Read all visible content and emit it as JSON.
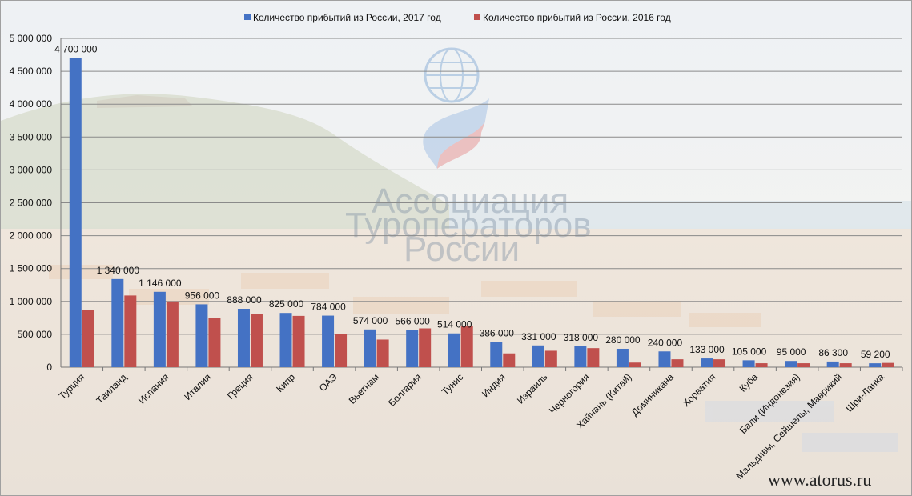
{
  "chart_data": {
    "type": "bar",
    "title": "",
    "xlabel": "",
    "ylabel": "",
    "ylim": [
      0,
      5000000
    ],
    "ytick_step": 500000,
    "grid": true,
    "legend_position": "top",
    "categories": [
      "Турция",
      "Таиланд",
      "Испания",
      "Италия",
      "Греция",
      "Кипр",
      "ОАЭ",
      "Вьетнам",
      "Болгария",
      "Тунис",
      "Индия",
      "Израиль",
      "Черногория",
      "Хайнань (Китай)",
      "Доминикана",
      "Хорватия",
      "Куба",
      "Бали (Индонезия)",
      "Мальдивы, Сейшелы, Маврикий",
      "Шри-Ланка"
    ],
    "series": [
      {
        "name": "Количество прибытий из России, 2017 год",
        "color": "#4472c4",
        "values": [
          4700000,
          1340000,
          1146000,
          956000,
          888000,
          825000,
          784000,
          574000,
          566000,
          514000,
          386000,
          331000,
          318000,
          280000,
          240000,
          133000,
          105000,
          95000,
          86300,
          59200
        ]
      },
      {
        "name": "Количество прибытий из России, 2016 год",
        "color": "#c0504d",
        "values": [
          870000,
          1090000,
          1000000,
          750000,
          810000,
          780000,
          510000,
          420000,
          590000,
          620000,
          210000,
          250000,
          290000,
          70000,
          120000,
          120000,
          60000,
          60000,
          60000,
          65000
        ]
      }
    ],
    "data_labels": [
      "4 700 000",
      "1 340 000",
      "1 146 000",
      "956 000",
      "888 000",
      "825 000",
      "784 000",
      "574 000",
      "566 000",
      "514 000",
      "386 000",
      "331 000",
      "318 000",
      "280 000",
      "240 000",
      "133 000",
      "105 000",
      "95 000",
      "86 300",
      "59 200"
    ],
    "ytick_labels": [
      "0",
      "500 000",
      "1 000 000",
      "1 500 000",
      "2 000 000",
      "2 500 000",
      "3 000 000",
      "3 500 000",
      "4 000 000",
      "4 500 000",
      "5 000 000"
    ]
  },
  "watermark": {
    "logo_lines": [
      "Ассоциация",
      "Туроператоров",
      "России"
    ],
    "logo_icon": "globe-flag-icon"
  },
  "footer": {
    "site": "www.atorus.ru"
  }
}
